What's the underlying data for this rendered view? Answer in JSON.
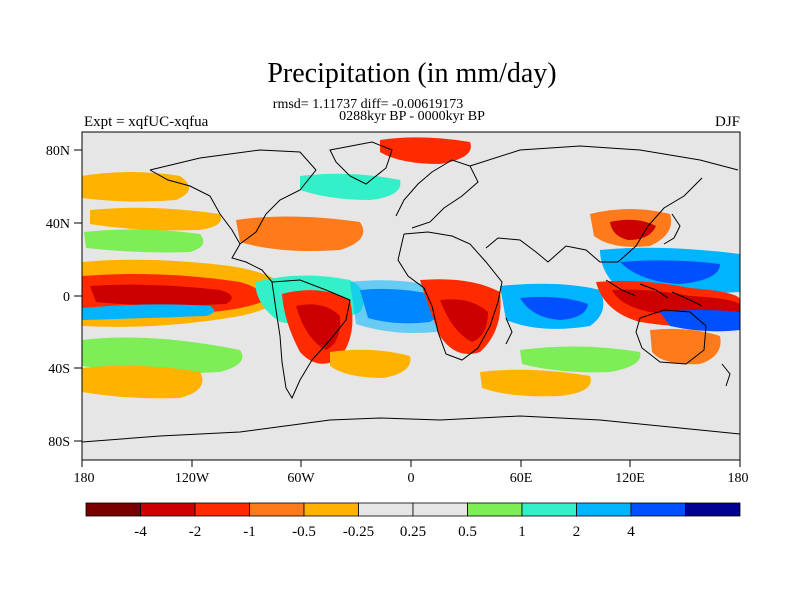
{
  "title": "Precipitation (in mm/day)",
  "stats": "rmsd= 1.11737 diff= -0.00619173",
  "period": "0288kyr BP - 0000kyr BP",
  "expt": "Expt = xqfUC-xqfua",
  "season": "DJF",
  "lat_ticks": [
    "80N",
    "40N",
    "0",
    "40S",
    "80S"
  ],
  "lon_ticks": [
    "180",
    "120W",
    "60W",
    "0",
    "60E",
    "120E",
    "180"
  ],
  "colorbar": {
    "colors": [
      "#7a0000",
      "#cc0000",
      "#ff2a00",
      "#ff7a1a",
      "#ffb300",
      "#e6e6e6",
      "#e6e6e6",
      "#7dee55",
      "#33f0c8",
      "#00b4ff",
      "#0050ff",
      "#000090"
    ],
    "labels": [
      "-4",
      "-2",
      "-1",
      "-0.5",
      "-0.25",
      "0.25",
      "0.5",
      "1",
      "2",
      "4"
    ]
  },
  "colors": {
    "land_bg": "#e6e6e6",
    "coast": "#000000"
  }
}
